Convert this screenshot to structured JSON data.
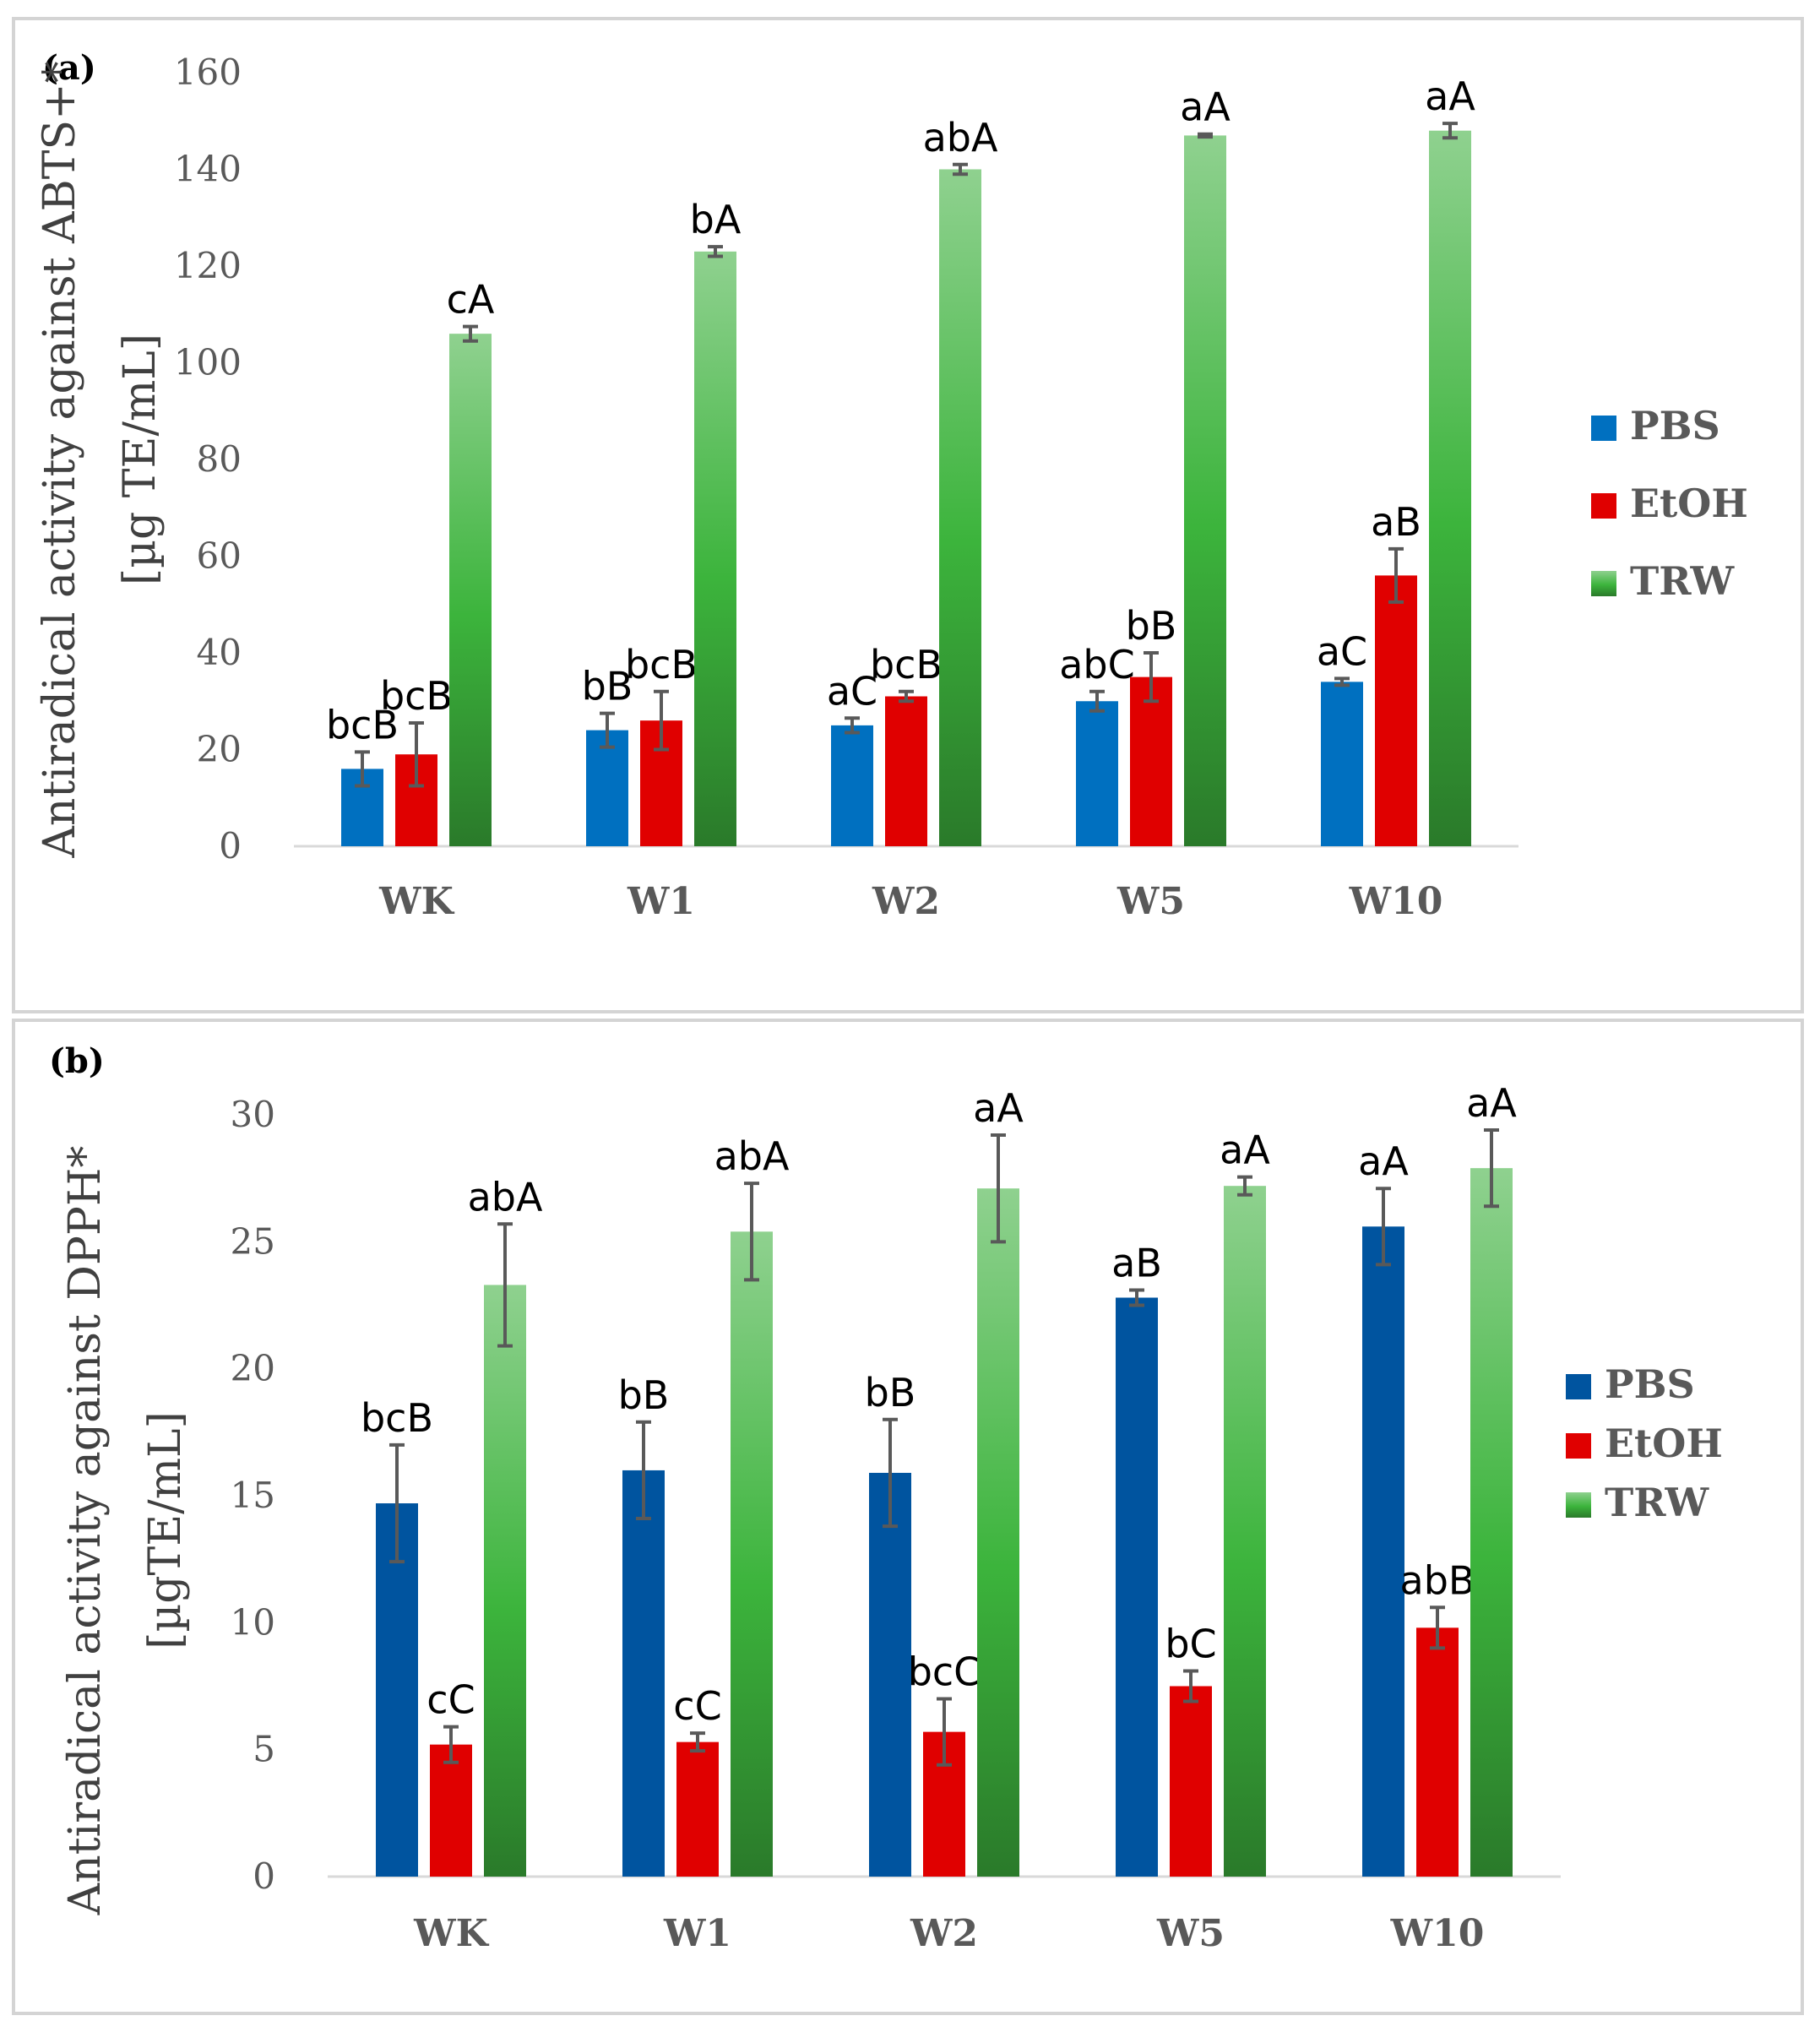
{
  "chart_data": [
    {
      "type": "bar",
      "panel_label": "(a)",
      "ylabel_lines": [
        "Antiradical activity against ABTS+*",
        "[µg TE/mL]"
      ],
      "categories": [
        "WK",
        "W1",
        "W2",
        "W5",
        "W10"
      ],
      "ylim": [
        0,
        160
      ],
      "yticks": [
        0,
        20,
        40,
        60,
        80,
        100,
        120,
        140,
        160
      ],
      "grid": false,
      "legend_position": "right",
      "series": [
        {
          "name": "PBS",
          "color": "#0070c0",
          "values": [
            16,
            24,
            25,
            30,
            34
          ],
          "errors": [
            3.5,
            3.5,
            1.5,
            2,
            0.7
          ],
          "labels": [
            "bcB",
            "bB",
            "aC",
            "abC",
            "aC"
          ]
        },
        {
          "name": "EtOH",
          "color": "#e00000",
          "values": [
            19,
            26,
            31,
            35,
            56
          ],
          "errors": [
            6.5,
            6,
            1,
            5,
            5.5
          ],
          "labels": [
            "bcB",
            "bcB",
            "bcB",
            "bB",
            "aB"
          ]
        },
        {
          "name": "TRW",
          "color": "#3cb43c",
          "values": [
            106,
            123,
            140,
            147,
            148
          ],
          "errors": [
            1.5,
            1,
            1,
            0.3,
            1.5
          ],
          "labels": [
            "cA",
            "bA",
            "abA",
            "aA",
            "aA"
          ]
        }
      ]
    },
    {
      "type": "bar",
      "panel_label": "(b)",
      "ylabel_lines": [
        "Antiradical activity against DPPH*",
        "[µgTE/mL]"
      ],
      "categories": [
        "WK",
        "W1",
        "W2",
        "W5",
        "W10"
      ],
      "ylim": [
        0,
        30
      ],
      "yticks": [
        0,
        5,
        10,
        15,
        20,
        25,
        30
      ],
      "grid": false,
      "legend_position": "right",
      "series": [
        {
          "name": "PBS",
          "color": "#00549f",
          "values": [
            14.7,
            16,
            15.9,
            22.8,
            25.6
          ],
          "errors": [
            2.3,
            1.9,
            2.1,
            0.3,
            1.5
          ],
          "labels": [
            "bcB",
            "bB",
            "bB",
            "aB",
            "aA"
          ]
        },
        {
          "name": "EtOH",
          "color": "#e00000",
          "values": [
            5.2,
            5.3,
            5.7,
            7.5,
            9.8
          ],
          "errors": [
            0.7,
            0.35,
            1.3,
            0.6,
            0.8
          ],
          "labels": [
            "cC",
            "cC",
            "bcC",
            "bC",
            "abB"
          ]
        },
        {
          "name": "TRW",
          "color": "#3cb43c",
          "values": [
            23.3,
            25.4,
            27.1,
            27.2,
            27.9
          ],
          "errors": [
            2.4,
            1.9,
            2.1,
            0.35,
            1.5
          ],
          "labels": [
            "abA",
            "abA",
            "aA",
            "aA",
            "aA"
          ]
        }
      ]
    }
  ]
}
